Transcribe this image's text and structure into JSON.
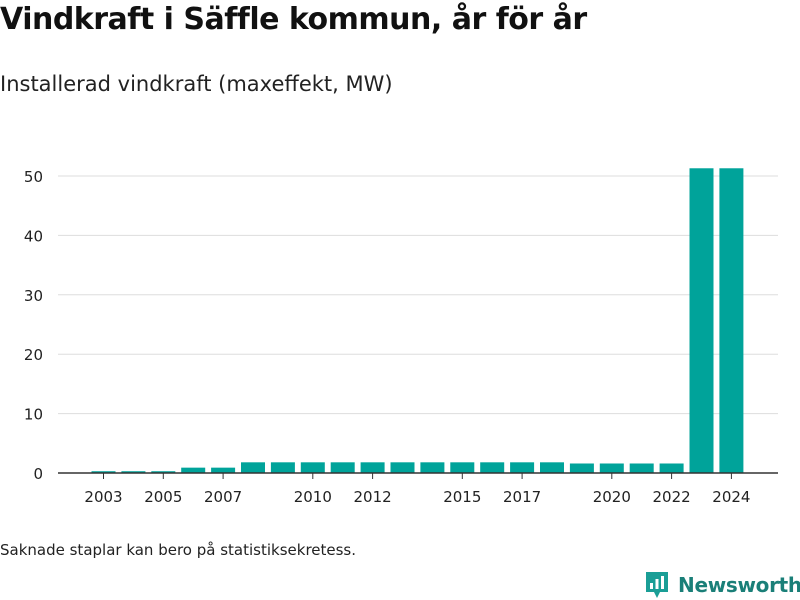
{
  "title": "Vindkraft i Säffle kommun, år för år",
  "subtitle": "Installerad vindkraft (maxeffekt, MW)",
  "footnote": "Saknade staplar kan bero på statistiksekretess.",
  "brand": {
    "name": "Newsworthy",
    "color": "#1a9e96",
    "icon": "newsworthy-logo-icon"
  },
  "colors": {
    "bar": "#00a39a",
    "grid": "#dddddd",
    "axis": "#333333",
    "text": "#222222"
  },
  "chart_data": {
    "type": "bar",
    "x": [
      2003,
      2004,
      2005,
      2006,
      2007,
      2008,
      2009,
      2010,
      2011,
      2012,
      2013,
      2014,
      2015,
      2016,
      2017,
      2018,
      2019,
      2020,
      2021,
      2022,
      2023,
      2024
    ],
    "values": [
      0.3,
      0.3,
      0.3,
      0.9,
      0.9,
      1.8,
      1.8,
      1.8,
      1.8,
      1.8,
      1.8,
      1.8,
      1.8,
      1.8,
      1.8,
      1.8,
      1.6,
      1.6,
      1.6,
      1.6,
      51.3,
      51.3
    ],
    "x_ticks": [
      "2003",
      "2005",
      "2007",
      "2010",
      "2012",
      "2015",
      "2017",
      "2020",
      "2022",
      "2024"
    ],
    "y_ticks": [
      "0",
      "10",
      "20",
      "30",
      "40",
      "50"
    ],
    "ylim": [
      0,
      55
    ],
    "grid": true
  }
}
